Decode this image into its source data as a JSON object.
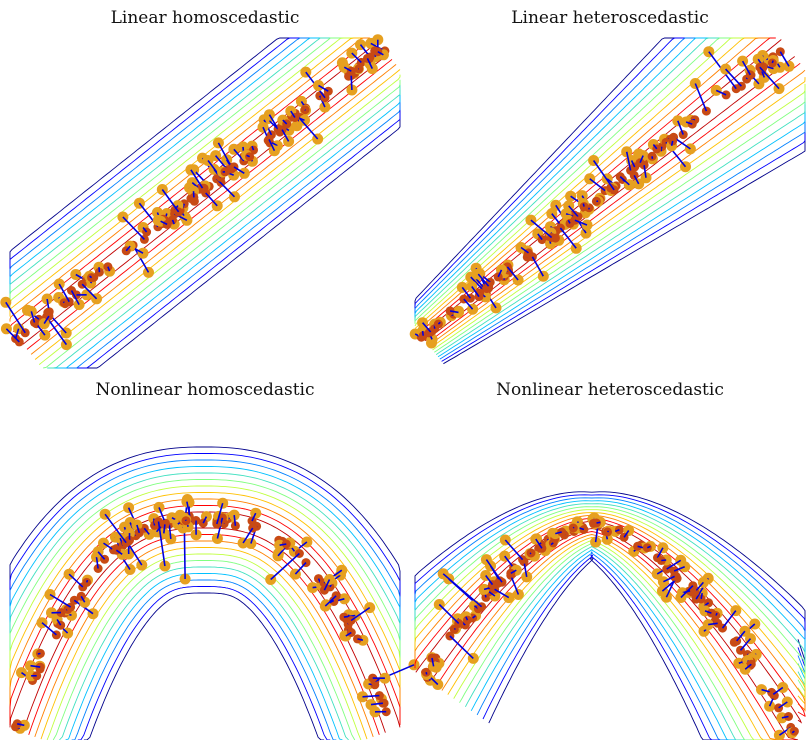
{
  "figure": {
    "panels": [
      {
        "id": "lin-homo",
        "title": "Linear homoscedastic"
      },
      {
        "id": "lin-hetero",
        "title": "Linear heteroscedastic"
      },
      {
        "id": "nonlin-homo",
        "title": "Nonlinear homoscedastic"
      },
      {
        "id": "nonlin-hetero",
        "title": "Nonlinear heteroscedastic"
      }
    ]
  },
  "chart_data": [
    {
      "type": "scatter",
      "title": "Linear homoscedastic",
      "curve": "line",
      "spread": "constant",
      "contour_colors": [
        "#00008b",
        "#0000ff",
        "#0080ff",
        "#00c0ff",
        "#40e0c0",
        "#80ff80",
        "#c0ff40",
        "#ffc000",
        "#ff8000",
        "#ff0000",
        "#c00000"
      ],
      "point_colors": {
        "sample": "#e6a020",
        "projection": "#c84a14",
        "arrow": "#0000e0"
      }
    },
    {
      "type": "scatter",
      "title": "Linear heteroscedastic",
      "curve": "line",
      "spread": "increasing",
      "contour_colors": [
        "#00008b",
        "#0000ff",
        "#0080ff",
        "#00c0ff",
        "#40e0c0",
        "#80ff80",
        "#c0ff40",
        "#ffc000",
        "#ff8000",
        "#ff0000",
        "#c00000"
      ],
      "point_colors": {
        "sample": "#e6a020",
        "projection": "#c84a14",
        "arrow": "#0000e0"
      }
    },
    {
      "type": "scatter",
      "title": "Nonlinear homoscedastic",
      "curve": "arch",
      "spread": "constant",
      "contour_colors": [
        "#00008b",
        "#0000ff",
        "#0080ff",
        "#00c0ff",
        "#40e0c0",
        "#80ff80",
        "#c0ff40",
        "#ffc000",
        "#ff8000",
        "#ff0000",
        "#c00000"
      ],
      "point_colors": {
        "sample": "#e6a020",
        "projection": "#c84a14",
        "arrow": "#0000e0"
      }
    },
    {
      "type": "scatter",
      "title": "Nonlinear heteroscedastic",
      "curve": "peak",
      "spread": "increasing",
      "contour_colors": [
        "#00008b",
        "#0000ff",
        "#0080ff",
        "#00c0ff",
        "#40e0c0",
        "#80ff80",
        "#c0ff40",
        "#ffc000",
        "#ff8000",
        "#ff0000",
        "#c00000"
      ],
      "point_colors": {
        "sample": "#e6a020",
        "projection": "#c84a14",
        "arrow": "#0000e0"
      }
    }
  ]
}
